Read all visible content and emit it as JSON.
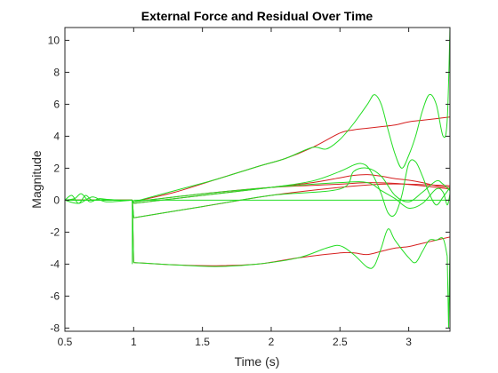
{
  "chart_data": {
    "type": "line",
    "title": "External Force and Residual Over Time",
    "xlabel": "Time (s)",
    "ylabel": "Magnitude",
    "xlim": [
      0.5,
      3.3
    ],
    "ylim": [
      -8.2,
      10.8
    ],
    "xticks": [
      0.5,
      1,
      1.5,
      2,
      2.5,
      3
    ],
    "yticks": [
      -8,
      -6,
      -4,
      -2,
      0,
      2,
      4,
      6,
      8,
      10
    ],
    "grid": false,
    "legend": "none",
    "series_colors": {
      "external_force": "#d62020",
      "residual": "#22dd22"
    },
    "series": [
      {
        "color": "#d62020",
        "x": [
          0.5,
          0.99,
          1.0,
          1.3,
          1.6,
          1.9,
          2.1,
          2.3,
          2.5,
          2.6,
          2.7,
          2.8,
          2.9,
          3.0,
          3.1,
          3.2,
          3.3
        ],
        "y": [
          0,
          0,
          -0.1,
          0.5,
          1.3,
          2.1,
          2.6,
          3.3,
          4.2,
          4.4,
          4.5,
          4.6,
          4.7,
          4.9,
          5.0,
          5.1,
          5.2
        ]
      },
      {
        "color": "#d62020",
        "x": [
          0.5,
          0.99,
          1.0,
          1.5,
          2.0,
          2.3,
          2.5,
          2.6,
          2.7,
          2.8,
          2.9,
          3.0,
          3.1,
          3.2,
          3.3
        ],
        "y": [
          0,
          0,
          -0.2,
          0.3,
          0.8,
          1.1,
          1.4,
          1.55,
          1.6,
          1.5,
          1.35,
          1.25,
          1.1,
          0.9,
          0.8
        ]
      },
      {
        "color": "#d62020",
        "x": [
          0.5,
          0.99,
          1.0,
          1.5,
          2.0,
          2.5,
          2.7,
          2.9,
          3.1,
          3.3
        ],
        "y": [
          0,
          0,
          -0.1,
          0.4,
          0.8,
          1.0,
          1.1,
          1.05,
          0.9,
          0.7
        ]
      },
      {
        "color": "#d62020",
        "x": [
          0.5,
          0.99,
          1.0,
          1.5,
          2.0,
          2.5,
          2.8,
          3.0,
          3.3
        ],
        "y": [
          0,
          0,
          -1.1,
          -0.4,
          0.3,
          0.8,
          1.0,
          1.0,
          0.9
        ]
      },
      {
        "color": "#d62020",
        "x": [
          0.5,
          0.99,
          1.0,
          1.3,
          1.6,
          1.9,
          2.2,
          2.5,
          2.6,
          2.7,
          2.8,
          2.9,
          3.0,
          3.1,
          3.2,
          3.3
        ],
        "y": [
          0,
          0,
          -3.9,
          -4.05,
          -4.1,
          -4.0,
          -3.6,
          -3.3,
          -3.3,
          -3.4,
          -3.2,
          -3.0,
          -2.9,
          -2.7,
          -2.5,
          -2.3
        ]
      },
      {
        "color": "#22dd22",
        "x": [
          0.5,
          0.55,
          0.6,
          0.65,
          0.7,
          0.8,
          0.9,
          0.99,
          1.0,
          1.3,
          1.6,
          1.9,
          2.1,
          2.3,
          2.4,
          2.5,
          2.6,
          2.7,
          2.75,
          2.8,
          2.85,
          2.9,
          2.95,
          3.0,
          3.05,
          3.1,
          3.15,
          3.2,
          3.25,
          3.28,
          3.3
        ],
        "y": [
          0,
          0.3,
          -0.2,
          0.3,
          0,
          0.05,
          0,
          0,
          -0.1,
          0.6,
          1.3,
          2.1,
          2.6,
          3.3,
          3.2,
          3.8,
          4.8,
          6.0,
          6.6,
          6.0,
          4.4,
          2.9,
          2.0,
          2.8,
          4.0,
          5.6,
          6.6,
          6.0,
          4.0,
          5.0,
          10.8
        ]
      },
      {
        "color": "#22dd22",
        "x": [
          0.5,
          0.57,
          0.62,
          0.68,
          0.75,
          0.85,
          0.99,
          1.0,
          1.5,
          2.0,
          2.3,
          2.5,
          2.6,
          2.65,
          2.7,
          2.75,
          2.8,
          2.85,
          2.9,
          2.95,
          3.0,
          3.05,
          3.1,
          3.15,
          3.2,
          3.25,
          3.3
        ],
        "y": [
          0,
          0.1,
          0.4,
          -0.1,
          0.1,
          0,
          0,
          -0.2,
          0.3,
          0.8,
          1.2,
          1.8,
          2.2,
          2.3,
          2.1,
          1.4,
          0.4,
          -0.8,
          -0.9,
          0.3,
          2.3,
          2.4,
          1.5,
          0.4,
          -0.3,
          0.2,
          0.8
        ]
      },
      {
        "color": "#22dd22",
        "x": [
          0.5,
          0.6,
          0.7,
          0.8,
          0.99,
          1.0,
          1.5,
          2.0,
          2.5,
          2.7,
          2.8,
          2.9,
          3.0,
          3.1,
          3.2,
          3.25,
          3.28,
          3.3
        ],
        "y": [
          0,
          -0.2,
          0.2,
          -0.1,
          0,
          -0.1,
          0.4,
          0.8,
          1.1,
          1.1,
          0.6,
          0.1,
          -0.5,
          -0.2,
          0.7,
          0.5,
          -0.3,
          0.4
        ]
      },
      {
        "color": "#22dd22",
        "x": [
          0.5,
          0.99,
          1.0,
          1.5,
          2.0,
          2.5,
          2.6,
          2.7,
          2.8,
          2.9,
          3.0,
          3.1,
          3.2,
          3.25,
          3.3
        ],
        "y": [
          0,
          0,
          -1.1,
          -0.4,
          0.3,
          0.7,
          1.8,
          2.0,
          1.5,
          0.3,
          -0.1,
          0.5,
          1.2,
          1.0,
          0.6
        ]
      },
      {
        "color": "#22dd22",
        "x": [
          0.5,
          0.99,
          1.0,
          1.3,
          1.6,
          1.9,
          2.2,
          2.4,
          2.5,
          2.6,
          2.7,
          2.75,
          2.8,
          2.85,
          2.9,
          3.0,
          3.05,
          3.1,
          3.15,
          3.2,
          3.25,
          3.28,
          3.29,
          3.3
        ],
        "y": [
          0,
          0,
          -3.9,
          -4.05,
          -4.15,
          -4.0,
          -3.6,
          -3.0,
          -2.85,
          -3.4,
          -4.2,
          -4.1,
          -3.0,
          -1.8,
          -2.5,
          -3.6,
          -3.9,
          -3.2,
          -2.5,
          -2.5,
          -2.4,
          -3.5,
          -8.0,
          -3.0
        ]
      },
      {
        "color": "#22dd22",
        "x": [
          0.99,
          0.99
        ],
        "y": [
          0,
          -4.0
        ]
      },
      {
        "color": "#22dd22",
        "x": [
          1.0,
          3.3
        ],
        "y": [
          0,
          0
        ]
      }
    ]
  }
}
